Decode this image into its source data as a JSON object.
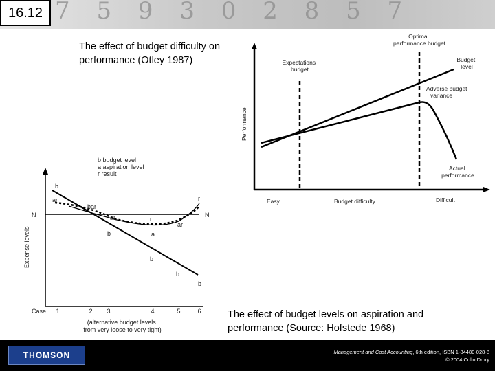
{
  "slide": {
    "number": "16.12"
  },
  "captions": {
    "top": "The effect of budget difficulty on performance (Otley 1987)",
    "bottom": "The effect of budget levels on aspiration and performance (Source: Hofstede 1968)"
  },
  "otley_chart": {
    "y_label": "Performance",
    "x_easy": "Easy",
    "x_mid": "Budget difficulty",
    "x_difficult": "Difficult",
    "optimal": [
      "Optimal",
      "performance budget"
    ],
    "expectations": [
      "Expectations",
      "budget"
    ],
    "budget_level": [
      "Budget",
      "level"
    ],
    "adverse": [
      "Adverse budget",
      "variance"
    ],
    "actual": [
      "Actual",
      "performance"
    ]
  },
  "hofstede_chart": {
    "legend": [
      "b budget level",
      "a aspiration level",
      "r result"
    ],
    "y_label": "Expense levels",
    "n_label": "N",
    "case_label": "Case",
    "x_ticks": [
      "1",
      "2",
      "3",
      "4",
      "5",
      "6"
    ],
    "x_note": [
      "(alternative budget levels",
      "from very loose to very tight)"
    ],
    "point_labels": {
      "b": "b",
      "a": "a",
      "r": "r",
      "ar": "ar",
      "bar": "bar"
    }
  },
  "footer": {
    "logo": "THOMSON",
    "book": "Management and Cost Accounting",
    "edition": ", 6th edition, ISBN 1-84480-028-8",
    "copyright": "© 2004 Colin Drury"
  },
  "colors": {
    "footer_bg": "#000000",
    "logo_bg": "#1c3f8c"
  }
}
